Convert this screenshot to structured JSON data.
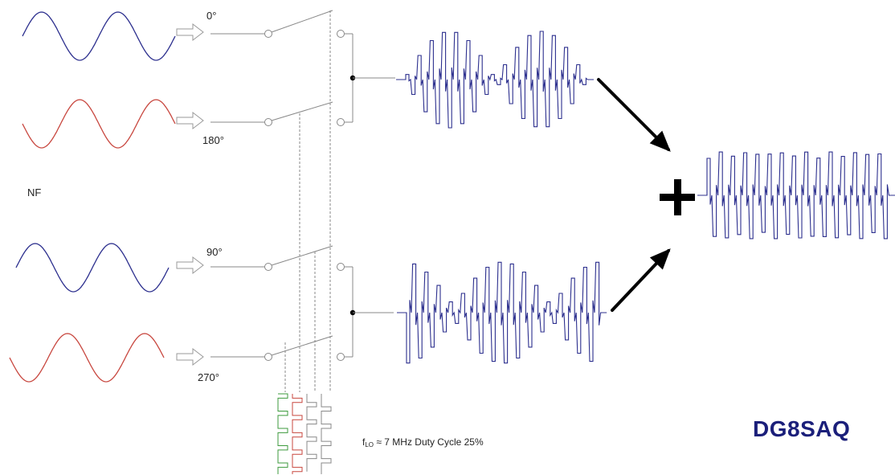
{
  "labels": {
    "phase_0": "0°",
    "phase_180": "180°",
    "phase_90": "90°",
    "phase_270": "270°",
    "nf": "NF",
    "flo_main": "f",
    "flo_sub": "LO",
    "flo_text": " ≈ 7 MHz Duty Cycle 25%",
    "plus": "+",
    "brand": "DG8SAQ"
  },
  "colors": {
    "blue": "#2c2f8e",
    "red": "#c8473f",
    "green": "#3c9a3c",
    "gray": "#888888",
    "black": "#000000",
    "brand": "#1b1f7a"
  },
  "inputs": [
    {
      "phase": "0°",
      "color": "blue"
    },
    {
      "phase": "180°",
      "color": "red"
    },
    {
      "phase": "90°",
      "color": "blue"
    },
    {
      "phase": "270°",
      "color": "red"
    }
  ]
}
